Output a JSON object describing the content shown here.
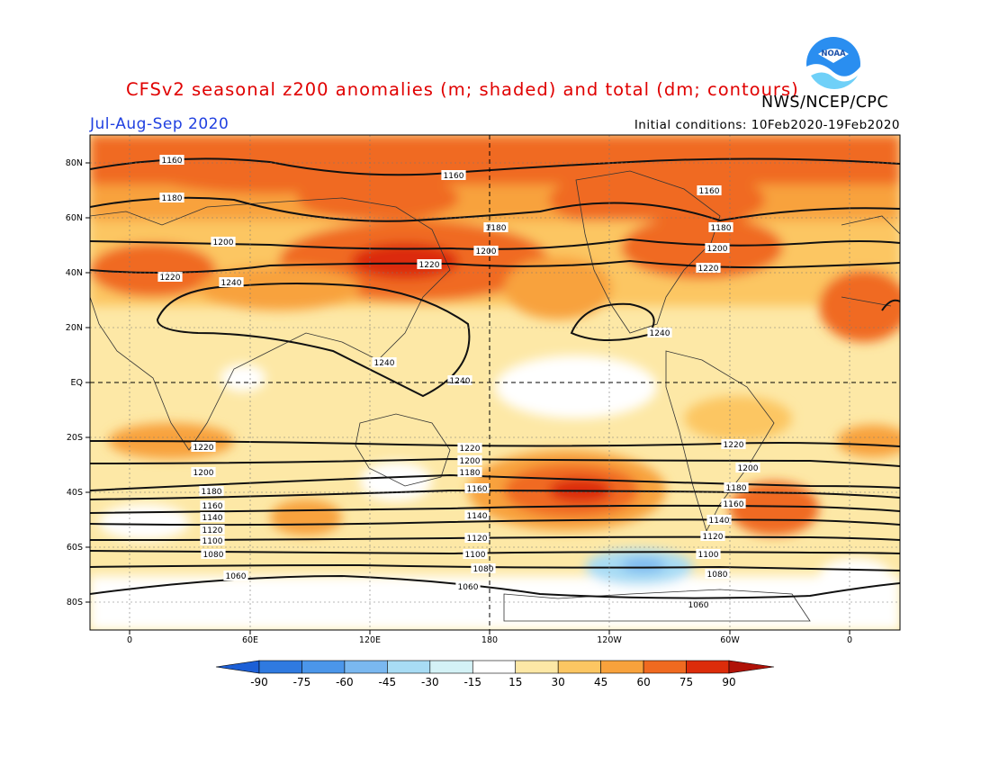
{
  "header": {
    "title": "CFSv2 seasonal z200 anomalies (m; shaded) and total (dm; contours)",
    "agency": "NWS/NCEP/CPC",
    "season": "Jul-Aug-Sep 2020",
    "initial_conditions": "Initial conditions: 10Feb2020-19Feb2020",
    "logo_text": "NOAA"
  },
  "map": {
    "lat_labels": [
      "80N",
      "60N",
      "40N",
      "20N",
      "EQ",
      "20S",
      "40S",
      "60S",
      "80S"
    ],
    "lon_labels": [
      "0",
      "60E",
      "120E",
      "180",
      "120W",
      "60W",
      "0"
    ],
    "contour_labels": [
      "1060",
      "1080",
      "1100",
      "1120",
      "1140",
      "1160",
      "1180",
      "1200",
      "1220",
      "1240"
    ]
  },
  "colorbar": {
    "ticks": [
      "-90",
      "-75",
      "-60",
      "-45",
      "-30",
      "-15",
      "15",
      "30",
      "45",
      "60",
      "75",
      "90"
    ],
    "colors": [
      "#1c5fd6",
      "#2f7ae0",
      "#4b96ea",
      "#7ab8f0",
      "#a8dcf4",
      "#d4f2f6",
      "#ffffff",
      "#fde8a6",
      "#fcc662",
      "#f8a23c",
      "#f06a20",
      "#dc2c0a",
      "#b01208"
    ]
  }
}
